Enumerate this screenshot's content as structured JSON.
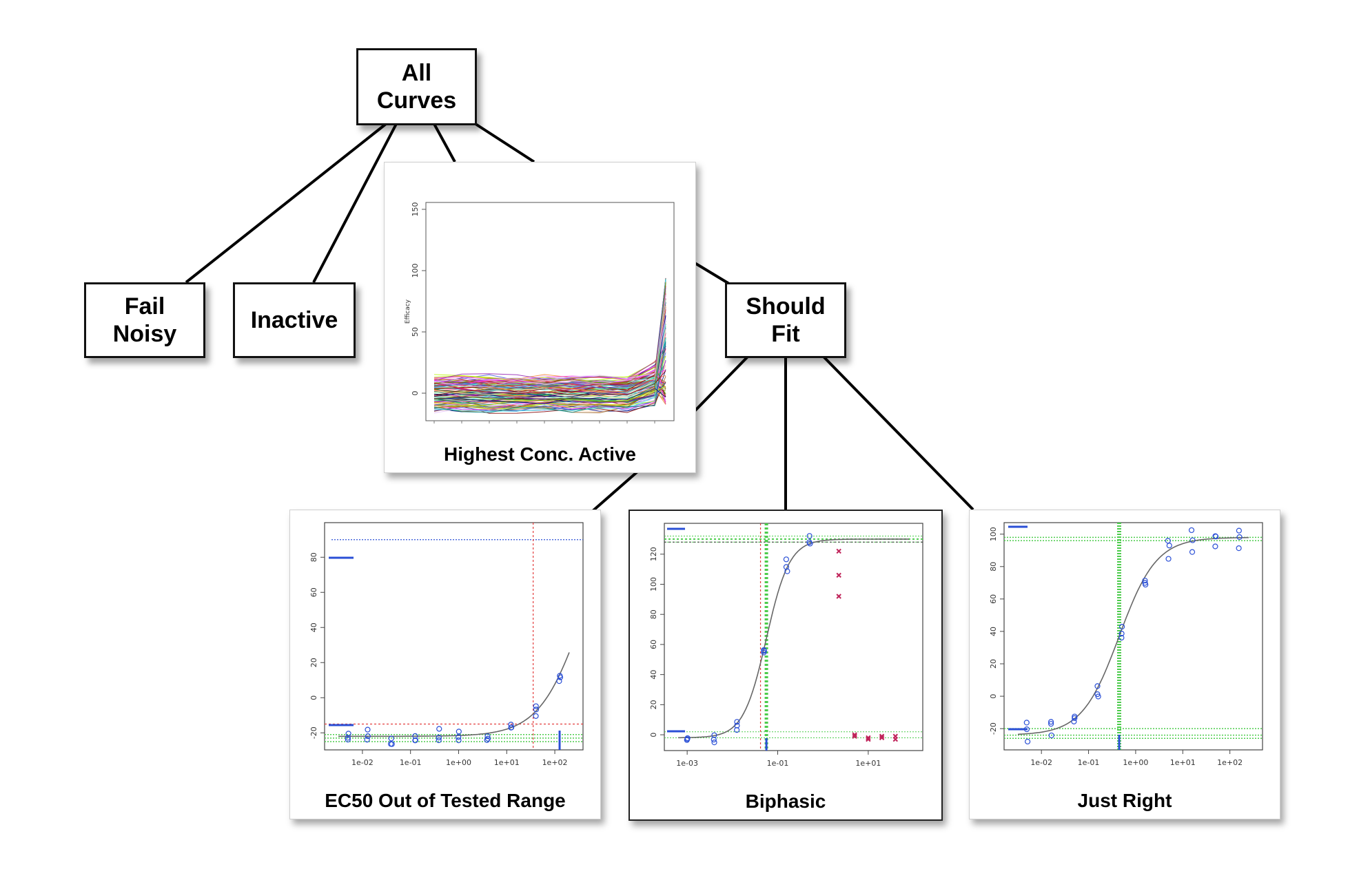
{
  "nodes": {
    "all_curves": "All\nCurves",
    "fail_noisy": "Fail\nNoisy",
    "inactive": "Inactive",
    "should_fit": "Should\nFit"
  },
  "panels": {
    "highest_conc": {
      "caption": "Highest Conc. Active",
      "ylabel": "Efficacy",
      "yticks": [
        "0",
        "50",
        "100",
        "150"
      ]
    },
    "ec50_out": {
      "caption": "EC50 Out of Tested Range",
      "yticks": [
        "-20",
        "0",
        "20",
        "40",
        "60",
        "80"
      ],
      "xticks": [
        "1e-02",
        "1e-01",
        "1e+00",
        "1e+01",
        "1e+02"
      ]
    },
    "biphasic": {
      "caption": "Biphasic",
      "yticks": [
        "0",
        "20",
        "40",
        "60",
        "80",
        "100",
        "120"
      ],
      "xticks": [
        "1e-03",
        "1e-01",
        "1e+01"
      ]
    },
    "just_right": {
      "caption": "Just Right",
      "yticks": [
        "-20",
        "0",
        "20",
        "40",
        "60",
        "80",
        "100"
      ],
      "xticks": [
        "1e-02",
        "1e-01",
        "1e+00",
        "1e+01",
        "1e+02"
      ]
    }
  },
  "colors": {
    "blue": "#2a4fd6",
    "green": "#4ccc4c",
    "red": "#e23b3b",
    "magenta": "#c0245a",
    "curve": "#777777"
  }
}
